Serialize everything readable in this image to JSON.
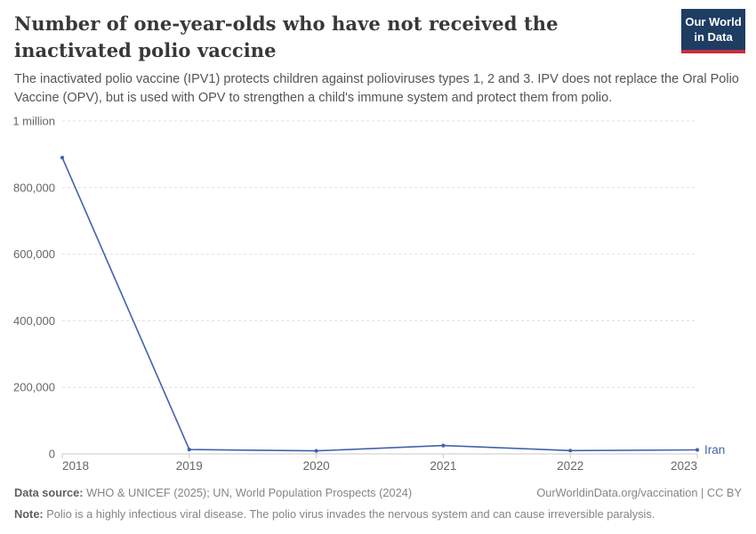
{
  "header": {
    "title": "Number of one-year-olds who have not received the inactivated polio vaccine",
    "subtitle": "The inactivated polio vaccine (IPV1) protects children against polioviruses types 1, 2 and 3. IPV does not replace the Oral Polio Vaccine (OPV), but is used with OPV to strengthen a child's immune system and protect them from polio.",
    "logo": {
      "line1": "Our World",
      "line2": "in Data"
    }
  },
  "chart_data": {
    "type": "line",
    "title": "Number of one-year-olds who have not received the inactivated polio vaccine",
    "x": [
      2018,
      2019,
      2020,
      2021,
      2022,
      2023
    ],
    "series": [
      {
        "name": "Iran",
        "color": "#4262ab",
        "values": [
          890000,
          13000,
          9000,
          25000,
          10000,
          12000
        ]
      }
    ],
    "ylim": [
      0,
      1000000
    ],
    "yticks": [
      {
        "value": 0,
        "label": "0"
      },
      {
        "value": 200000,
        "label": "200,000"
      },
      {
        "value": 400000,
        "label": "400,000"
      },
      {
        "value": 600000,
        "label": "600,000"
      },
      {
        "value": 800000,
        "label": "800,000"
      },
      {
        "value": 1000000,
        "label": "1 million"
      }
    ],
    "xlabel": "",
    "ylabel": "",
    "grid": "horizontal-dashed",
    "legend_position": "line-end-label"
  },
  "footer": {
    "datasource_label": "Data source:",
    "datasource_text": "WHO & UNICEF (2025); UN, World Population Prospects (2024)",
    "license_text": "OurWorldinData.org/vaccination | CC BY",
    "note_label": "Note:",
    "note_text": "Polio is a highly infectious viral disease. The polio virus invades the nervous system and can cause irreversible paralysis."
  },
  "colors": {
    "line": "#4262ab",
    "logo_navy": "#1d3d63",
    "logo_red": "#c5303e",
    "gridline": "#dddddd",
    "axis": "#c8c8c8",
    "tick_label": "#666666",
    "title": "#383838",
    "subtitle": "#555555",
    "footer": "#858585"
  }
}
